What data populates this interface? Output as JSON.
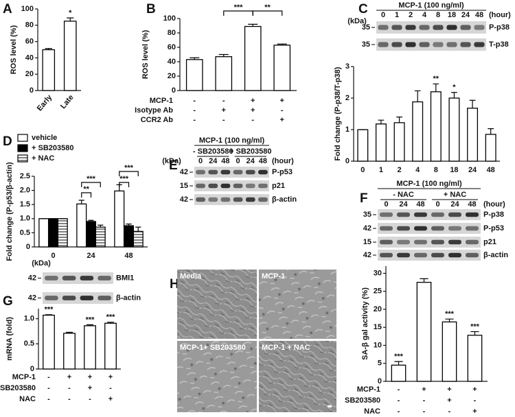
{
  "panel_labels": [
    "A",
    "B",
    "C",
    "D",
    "E",
    "F",
    "G",
    "H"
  ],
  "chart_data": [
    {
      "type": "bar",
      "y_label": "ROS level (%)",
      "categories": [
        "Early",
        "Late"
      ],
      "series": [
        {
          "color": "#ffffff",
          "values": [
            50,
            85
          ],
          "errors": [
            1.5,
            4
          ]
        }
      ],
      "value_annotations": [
        null,
        "*"
      ],
      "ylim": [
        0,
        100
      ],
      "yticks": [
        0,
        20,
        40,
        60,
        80,
        100
      ]
    },
    {
      "type": "bar",
      "y_label": "ROS level (%)",
      "series": [
        {
          "color": "#ffffff",
          "values": [
            43,
            47,
            89,
            63
          ],
          "errors": [
            2.5,
            3,
            3,
            1.5
          ]
        }
      ],
      "brackets": [
        "***",
        "**"
      ],
      "treatments": [
        {
          "name": "MCP-1",
          "levels": [
            "-",
            "-",
            "+",
            "+"
          ]
        },
        {
          "name": "Isotype Ab",
          "levels": [
            "-",
            "+",
            "+",
            "-"
          ]
        },
        {
          "name": "CCR2 Ab",
          "levels": [
            "-",
            "-",
            "-",
            "+"
          ]
        }
      ],
      "ylim": [
        0,
        100
      ],
      "yticks": [
        0,
        20,
        40,
        60,
        80,
        100
      ]
    },
    {
      "type": "bar",
      "y_label": "Fold change (P-p38/T-p38)",
      "categories": [
        "0",
        "1",
        "2",
        "4",
        "8",
        "18",
        "24",
        "48"
      ],
      "series": [
        {
          "color": "#ffffff",
          "values": [
            1,
            1.18,
            1.22,
            1.88,
            2.2,
            2.0,
            1.68,
            0.85
          ],
          "errors": [
            0,
            0.12,
            0.18,
            0.35,
            0.25,
            0.18,
            0.25,
            0.18
          ]
        }
      ],
      "value_annotations": [
        null,
        null,
        null,
        null,
        "**",
        "*",
        null,
        null
      ],
      "ylim": [
        0,
        3
      ],
      "yticks": [
        0,
        1,
        2,
        3
      ]
    },
    {
      "type": "bar",
      "y_label": "Fold change (P-p53/β-actin)",
      "categories": [
        "0",
        "24",
        "48"
      ],
      "series": [
        {
          "name": "vehicle",
          "color": "#ffffff",
          "values": [
            1,
            1.52,
            1.98
          ],
          "errors": [
            0,
            0.13,
            0.22
          ]
        },
        {
          "name": "+ SB203580",
          "color": "#000000",
          "values": [
            1,
            0.9,
            0.75
          ],
          "errors": [
            0,
            0.04,
            0.06
          ]
        },
        {
          "name": "+ NAC",
          "color": "#ffffff",
          "hatch": true,
          "values": [
            1,
            0.7,
            0.55
          ],
          "errors": [
            0,
            0.07,
            0.15
          ]
        }
      ],
      "legend": true,
      "brackets": [
        "***",
        "**",
        "***",
        "***"
      ],
      "ylim": [
        0,
        2.5
      ],
      "yticks": [
        0,
        0.5,
        {
          "value": 1,
          "label": "1.0"
        },
        1.5,
        {
          "value": 2,
          "label": "2.0"
        },
        2.5
      ]
    },
    {
      "type": "bar",
      "y_label": "mRNA (fold)",
      "series": [
        {
          "color": "#ffffff",
          "values": [
            1.07,
            0.71,
            0.86,
            0.91
          ],
          "errors": [
            0.01,
            0.02,
            0.02,
            0.02
          ]
        }
      ],
      "value_annotations": [
        "***",
        null,
        "***",
        "***"
      ],
      "treatments": [
        {
          "name": "MCP-1",
          "levels": [
            "-",
            "+",
            "+",
            "+"
          ]
        },
        {
          "name": "SB203580",
          "levels": [
            "-",
            "-",
            "+",
            "-"
          ]
        },
        {
          "name": "NAC",
          "levels": [
            "-",
            "-",
            "-",
            "+"
          ]
        }
      ],
      "ylim": [
        0,
        1.2
      ],
      "yticks": [
        0,
        0.5,
        {
          "value": 1,
          "label": "1.0"
        }
      ]
    },
    {
      "type": "bar",
      "y_label": "SA-β gal activity (%)",
      "series": [
        {
          "color": "#ffffff",
          "values": [
            4.5,
            27.5,
            16.5,
            12.8
          ],
          "errors": [
            1,
            1,
            0.8,
            1
          ]
        }
      ],
      "value_annotations": [
        "***",
        null,
        "***",
        "***"
      ],
      "treatments": [
        {
          "name": "MCP-1",
          "levels": [
            "-",
            "+",
            "+",
            "+"
          ]
        },
        {
          "name": "SB203580",
          "levels": [
            "-",
            "-",
            "+",
            "-"
          ]
        },
        {
          "name": "NAC",
          "levels": [
            "-",
            "-",
            "-",
            "+"
          ]
        }
      ],
      "ylim": [
        0,
        32
      ],
      "yticks": [
        0,
        5,
        10,
        15,
        20,
        25,
        30
      ]
    }
  ],
  "blots": {
    "C": {
      "title": "MCP-1 (100 ng/ml)",
      "unit": "(hour)",
      "kda_label": "(kDa)",
      "lanes": [
        "0",
        "1",
        "2",
        "4",
        "8",
        "18",
        "24",
        "48"
      ],
      "rows": [
        {
          "kda": "35",
          "label": "P-p38"
        },
        {
          "kda": "35",
          "label": "T-p38"
        }
      ]
    },
    "E": {
      "title": "MCP-1 (100 ng/ml)",
      "groups": [
        "- SB203580",
        "+ SB203580"
      ],
      "unit": "(hour)",
      "kda_label": "(kDa)",
      "lanes": [
        "0",
        "24",
        "48",
        "0",
        "24",
        "48"
      ],
      "rows": [
        {
          "kda": "42",
          "label": "P-p53"
        },
        {
          "kda": "15",
          "label": "p21"
        },
        {
          "kda": "42",
          "label": "β-actin"
        }
      ]
    },
    "F": {
      "title": "MCP-1 (100 ng/ml)",
      "groups": [
        "- NAC",
        "+ NAC"
      ],
      "unit": "(hour)",
      "lanes": [
        "0",
        "24",
        "48",
        "0",
        "24",
        "48"
      ],
      "rows": [
        {
          "kda": "35",
          "label": "P-p38"
        },
        {
          "kda": "42",
          "label": "P-p53"
        },
        {
          "kda": "15",
          "label": "p21"
        },
        {
          "kda": "42",
          "label": "β-actin"
        }
      ]
    },
    "G": {
      "kda_label": "(kDa)",
      "rows": [
        {
          "kda": "42",
          "label": "BMI1"
        },
        {
          "kda": "42",
          "label": "β-actin"
        }
      ]
    }
  },
  "images": [
    "Media",
    "MCP-1",
    "MCP-1+ SB203580",
    "MCP-1 + NAC"
  ]
}
